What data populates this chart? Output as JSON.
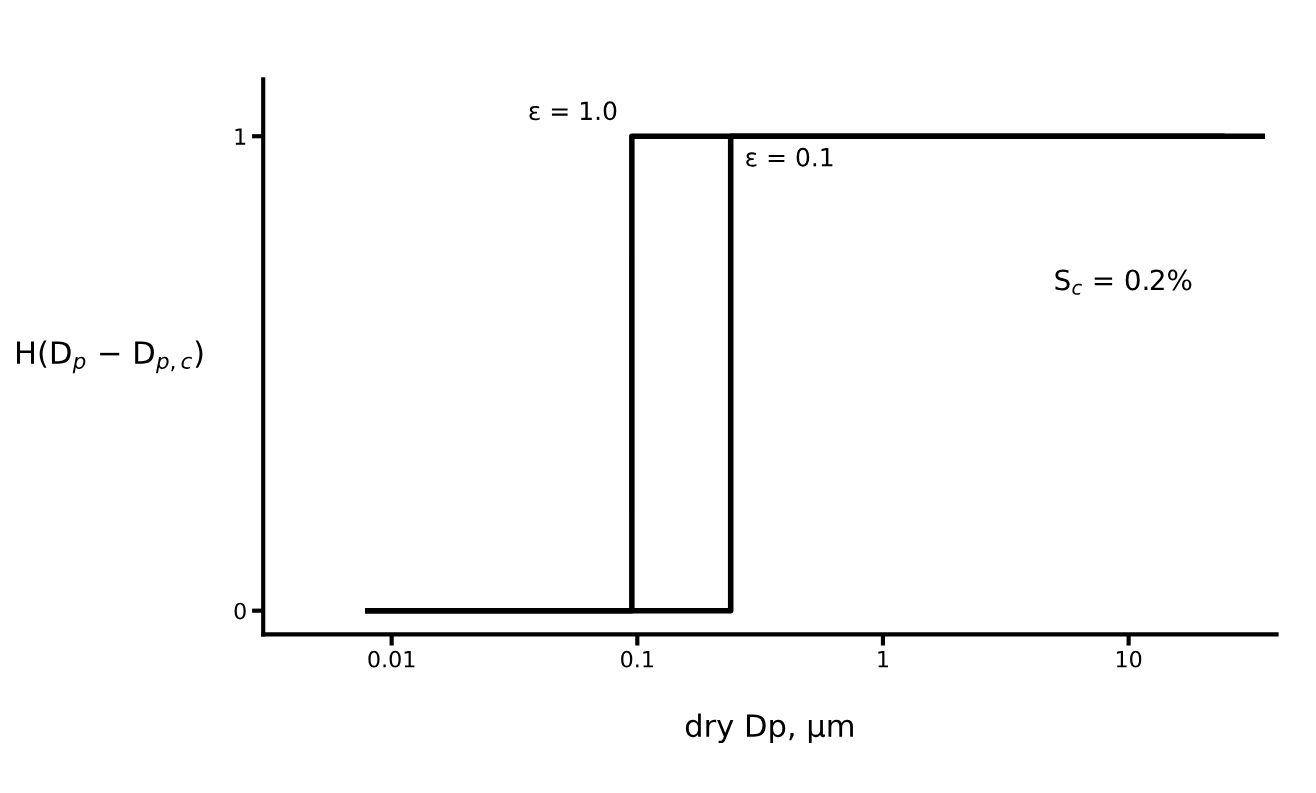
{
  "chart_data": {
    "type": "step",
    "xlabel": "dry Dp, μm",
    "ylabel": "H(D$_{p}$ − D$_{p,c}$)",
    "log": "x",
    "xlim": [
      0.003,
      40
    ],
    "xticks": [
      0.01,
      0.1,
      1,
      10
    ],
    "ylim": [
      -0.05,
      1.12
    ],
    "yticks": [
      0,
      1
    ],
    "grid": false,
    "legend": false,
    "series": [
      {
        "name": "ε = 1.0",
        "color": "#000000",
        "x": [
          0.008,
          0.095,
          35
        ],
        "values": [
          0,
          1,
          1
        ]
      },
      {
        "name": "ε = 0.1",
        "color": "#000000",
        "x": [
          0.008,
          0.24,
          24
        ],
        "values": [
          0,
          1,
          1
        ]
      }
    ],
    "annotations": [
      "S$_{c}$ = 0.2%"
    ]
  }
}
